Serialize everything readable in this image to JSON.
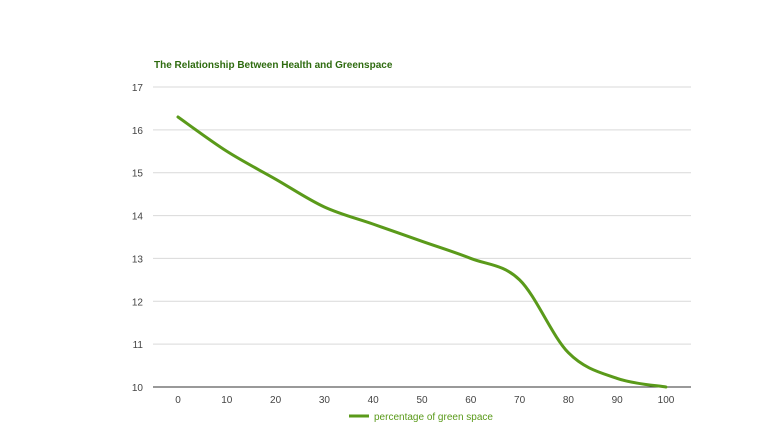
{
  "chart_data": {
    "type": "line",
    "title": "The Relationship Between Health and Greenspace",
    "xlabel": "",
    "ylabel": "",
    "x": [
      0,
      10,
      20,
      30,
      40,
      50,
      60,
      70,
      80,
      90,
      100
    ],
    "series": [
      {
        "name": "percentage of green space",
        "values": [
          16.3,
          15.5,
          14.85,
          14.2,
          13.8,
          13.4,
          13.0,
          12.5,
          10.8,
          10.2,
          10.0
        ],
        "color": "#5a9a1a"
      }
    ],
    "xlim": [
      0,
      100
    ],
    "ylim": [
      10,
      17
    ],
    "x_ticks": [
      0,
      10,
      20,
      30,
      40,
      50,
      60,
      70,
      80,
      90,
      100
    ],
    "y_ticks": [
      10,
      11,
      12,
      13,
      14,
      15,
      16,
      17
    ],
    "grid": true,
    "legend_position": "bottom",
    "title_color": "#2e6b0f",
    "gridline_color": "#d9d9d9"
  }
}
